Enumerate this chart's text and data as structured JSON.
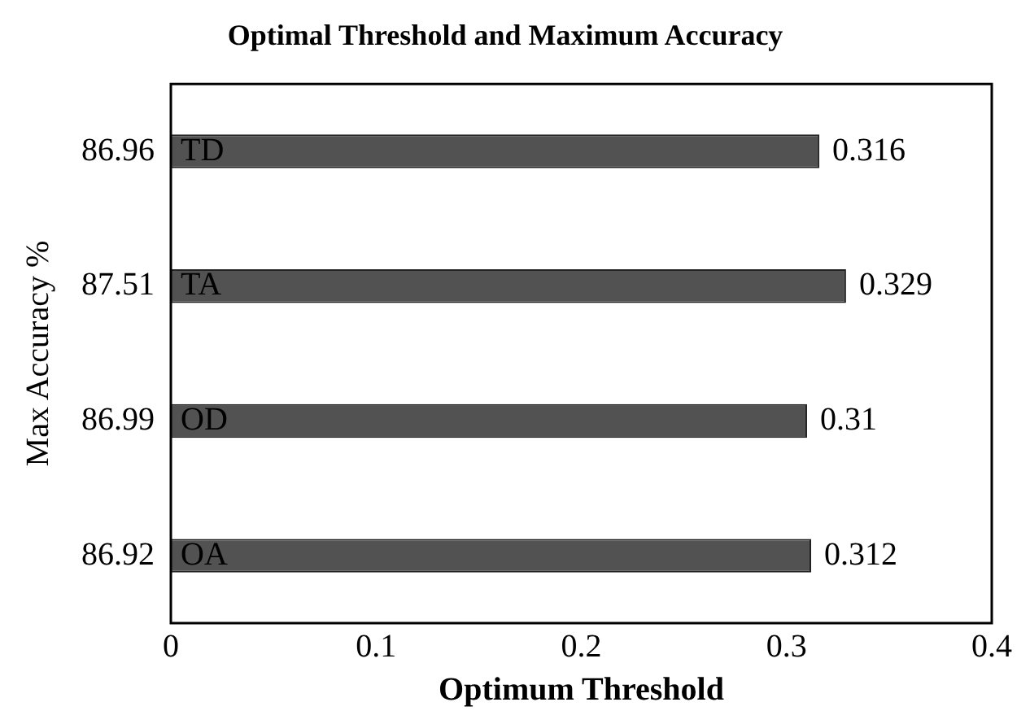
{
  "chart_data": {
    "type": "bar",
    "orientation": "horizontal",
    "title": "Optimal Threshold and Maximum Accuracy",
    "xlabel": "Optimum Threshold",
    "ylabel": "Max Accuracy %",
    "categories": [
      "86.96",
      "87.51",
      "86.99",
      "86.92"
    ],
    "values": [
      0.316,
      0.329,
      0.31,
      0.312
    ],
    "color": "#525252",
    "xlim": [
      0,
      0.4
    ],
    "xticks": [
      0,
      0.1,
      0.2,
      0.3,
      0.4
    ],
    "grid": false,
    "legend": false,
    "data_labels": true,
    "annotations": [
      "TD",
      "TA",
      "OD",
      "OA"
    ]
  }
}
